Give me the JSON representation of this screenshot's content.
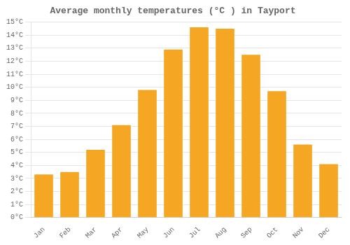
{
  "chart_data": {
    "type": "bar",
    "title": "Average monthly temperatures (°C ) in Tayport",
    "categories": [
      "Jan",
      "Feb",
      "Mar",
      "Apr",
      "May",
      "Jun",
      "Jul",
      "Aug",
      "Sep",
      "Oct",
      "Nov",
      "Dec"
    ],
    "values": [
      3.3,
      3.5,
      5.2,
      7.1,
      9.8,
      12.9,
      14.6,
      14.5,
      12.5,
      9.7,
      5.6,
      4.1
    ],
    "color": "#F5A623",
    "ylim": [
      0,
      15
    ],
    "yticks": [
      {
        "value": 0,
        "label": "0°C"
      },
      {
        "value": 1,
        "label": "1°C"
      },
      {
        "value": 2,
        "label": "2°C"
      },
      {
        "value": 3,
        "label": "3°C"
      },
      {
        "value": 4,
        "label": "4°C"
      },
      {
        "value": 5,
        "label": "5°C"
      },
      {
        "value": 6,
        "label": "6°C"
      },
      {
        "value": 7,
        "label": "7°C"
      },
      {
        "value": 8,
        "label": "8°C"
      },
      {
        "value": 9,
        "label": "9°C"
      },
      {
        "value": 10,
        "label": "10°C"
      },
      {
        "value": 11,
        "label": "11°C"
      },
      {
        "value": 12,
        "label": "12°C"
      },
      {
        "value": 13,
        "label": "13°C"
      },
      {
        "value": 14,
        "label": "14°C"
      },
      {
        "value": 15,
        "label": "15°C"
      }
    ],
    "grid": true
  }
}
